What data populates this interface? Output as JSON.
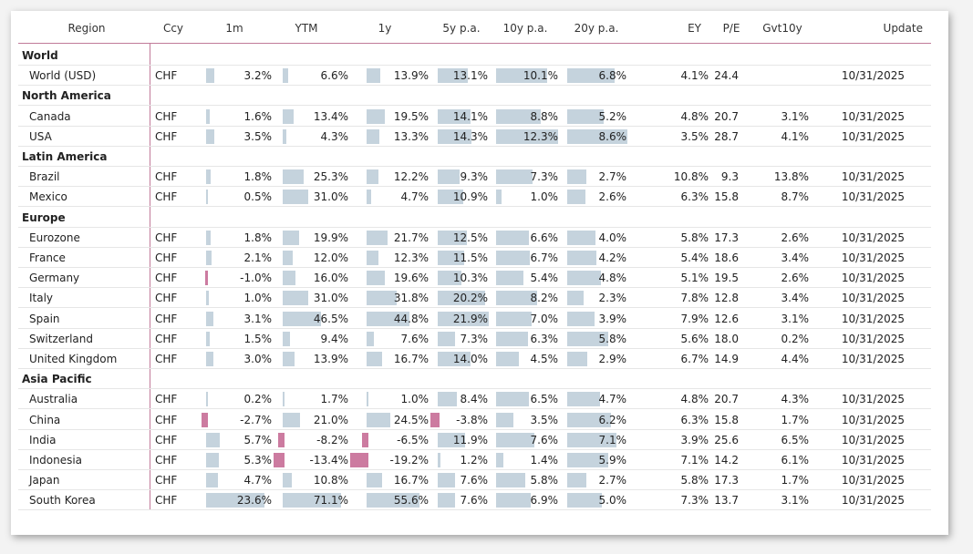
{
  "colors": {
    "positive_bar": "#c5d3dd",
    "negative_bar": "#cc7ba0",
    "separator": "#c17a99"
  },
  "headers": {
    "region": "Region",
    "ccy": "Ccy",
    "m1": "1m",
    "ytm": "YTM",
    "y1": "1y",
    "y5": "5y p.a.",
    "y10": "10y p.a.",
    "y20": "20y p.a.",
    "ey": "EY",
    "pe": "P/E",
    "gvt": "Gvt10y",
    "update": "Update"
  },
  "groups": [
    {
      "name": "World",
      "rows": [
        {
          "region": "World (USD)",
          "ccy": "CHF",
          "m1": "3.2%",
          "ytm": "6.6%",
          "y1": "13.9%",
          "y5": "13.1%",
          "y10": "10.1%",
          "y20": "6.8%",
          "ey": "4.1%",
          "pe": "24.4",
          "gvt": "",
          "update": "10/31/2025"
        }
      ]
    },
    {
      "name": "North America",
      "rows": [
        {
          "region": "Canada",
          "ccy": "CHF",
          "m1": "1.6%",
          "ytm": "13.4%",
          "y1": "19.5%",
          "y5": "14.1%",
          "y10": "8.8%",
          "y20": "5.2%",
          "ey": "4.8%",
          "pe": "20.7",
          "gvt": "3.1%",
          "update": "10/31/2025"
        },
        {
          "region": "USA",
          "ccy": "CHF",
          "m1": "3.5%",
          "ytm": "4.3%",
          "y1": "13.3%",
          "y5": "14.3%",
          "y10": "12.3%",
          "y20": "8.6%",
          "ey": "3.5%",
          "pe": "28.7",
          "gvt": "4.1%",
          "update": "10/31/2025"
        }
      ]
    },
    {
      "name": "Latin America",
      "rows": [
        {
          "region": "Brazil",
          "ccy": "CHF",
          "m1": "1.8%",
          "ytm": "25.3%",
          "y1": "12.2%",
          "y5": "9.3%",
          "y10": "7.3%",
          "y20": "2.7%",
          "ey": "10.8%",
          "pe": "9.3",
          "gvt": "13.8%",
          "update": "10/31/2025"
        },
        {
          "region": "Mexico",
          "ccy": "CHF",
          "m1": "0.5%",
          "ytm": "31.0%",
          "y1": "4.7%",
          "y5": "10.9%",
          "y10": "1.0%",
          "y20": "2.6%",
          "ey": "6.3%",
          "pe": "15.8",
          "gvt": "8.7%",
          "update": "10/31/2025"
        }
      ]
    },
    {
      "name": "Europe",
      "rows": [
        {
          "region": "Eurozone",
          "ccy": "CHF",
          "m1": "1.8%",
          "ytm": "19.9%",
          "y1": "21.7%",
          "y5": "12.5%",
          "y10": "6.6%",
          "y20": "4.0%",
          "ey": "5.8%",
          "pe": "17.3",
          "gvt": "2.6%",
          "update": "10/31/2025"
        },
        {
          "region": "France",
          "ccy": "CHF",
          "m1": "2.1%",
          "ytm": "12.0%",
          "y1": "12.3%",
          "y5": "11.5%",
          "y10": "6.7%",
          "y20": "4.2%",
          "ey": "5.4%",
          "pe": "18.6",
          "gvt": "3.4%",
          "update": "10/31/2025"
        },
        {
          "region": "Germany",
          "ccy": "CHF",
          "m1": "-1.0%",
          "ytm": "16.0%",
          "y1": "19.6%",
          "y5": "10.3%",
          "y10": "5.4%",
          "y20": "4.8%",
          "ey": "5.1%",
          "pe": "19.5",
          "gvt": "2.6%",
          "update": "10/31/2025"
        },
        {
          "region": "Italy",
          "ccy": "CHF",
          "m1": "1.0%",
          "ytm": "31.0%",
          "y1": "31.8%",
          "y5": "20.2%",
          "y10": "8.2%",
          "y20": "2.3%",
          "ey": "7.8%",
          "pe": "12.8",
          "gvt": "3.4%",
          "update": "10/31/2025"
        },
        {
          "region": "Spain",
          "ccy": "CHF",
          "m1": "3.1%",
          "ytm": "46.5%",
          "y1": "44.8%",
          "y5": "21.9%",
          "y10": "7.0%",
          "y20": "3.9%",
          "ey": "7.9%",
          "pe": "12.6",
          "gvt": "3.1%",
          "update": "10/31/2025"
        },
        {
          "region": "Switzerland",
          "ccy": "CHF",
          "m1": "1.5%",
          "ytm": "9.4%",
          "y1": "7.6%",
          "y5": "7.3%",
          "y10": "6.3%",
          "y20": "5.8%",
          "ey": "5.6%",
          "pe": "18.0",
          "gvt": "0.2%",
          "update": "10/31/2025"
        },
        {
          "region": "United Kingdom",
          "ccy": "CHF",
          "m1": "3.0%",
          "ytm": "13.9%",
          "y1": "16.7%",
          "y5": "14.0%",
          "y10": "4.5%",
          "y20": "2.9%",
          "ey": "6.7%",
          "pe": "14.9",
          "gvt": "4.4%",
          "update": "10/31/2025"
        }
      ]
    },
    {
      "name": "Asia Pacific",
      "rows": [
        {
          "region": "Australia",
          "ccy": "CHF",
          "m1": "0.2%",
          "ytm": "1.7%",
          "y1": "1.0%",
          "y5": "8.4%",
          "y10": "6.5%",
          "y20": "4.7%",
          "ey": "4.8%",
          "pe": "20.7",
          "gvt": "4.3%",
          "update": "10/31/2025"
        },
        {
          "region": "China",
          "ccy": "CHF",
          "m1": "-2.7%",
          "ytm": "21.0%",
          "y1": "24.5%",
          "y5": "-3.8%",
          "y10": "3.5%",
          "y20": "6.2%",
          "ey": "6.3%",
          "pe": "15.8",
          "gvt": "1.7%",
          "update": "10/31/2025"
        },
        {
          "region": "India",
          "ccy": "CHF",
          "m1": "5.7%",
          "ytm": "-8.2%",
          "y1": "-6.5%",
          "y5": "11.9%",
          "y10": "7.6%",
          "y20": "7.1%",
          "ey": "3.9%",
          "pe": "25.6",
          "gvt": "6.5%",
          "update": "10/31/2025"
        },
        {
          "region": "Indonesia",
          "ccy": "CHF",
          "m1": "5.3%",
          "ytm": "-13.4%",
          "y1": "-19.2%",
          "y5": "1.2%",
          "y10": "1.4%",
          "y20": "5.9%",
          "ey": "7.1%",
          "pe": "14.2",
          "gvt": "6.1%",
          "update": "10/31/2025"
        },
        {
          "region": "Japan",
          "ccy": "CHF",
          "m1": "4.7%",
          "ytm": "10.8%",
          "y1": "16.7%",
          "y5": "7.6%",
          "y10": "5.8%",
          "y20": "2.7%",
          "ey": "5.8%",
          "pe": "17.3",
          "gvt": "1.7%",
          "update": "10/31/2025"
        },
        {
          "region": "South Korea",
          "ccy": "CHF",
          "m1": "23.6%",
          "ytm": "71.1%",
          "y1": "55.6%",
          "y5": "7.6%",
          "y10": "6.9%",
          "y20": "5.0%",
          "ey": "7.3%",
          "pe": "13.7",
          "gvt": "3.1%",
          "update": "10/31/2025"
        }
      ]
    }
  ]
}
